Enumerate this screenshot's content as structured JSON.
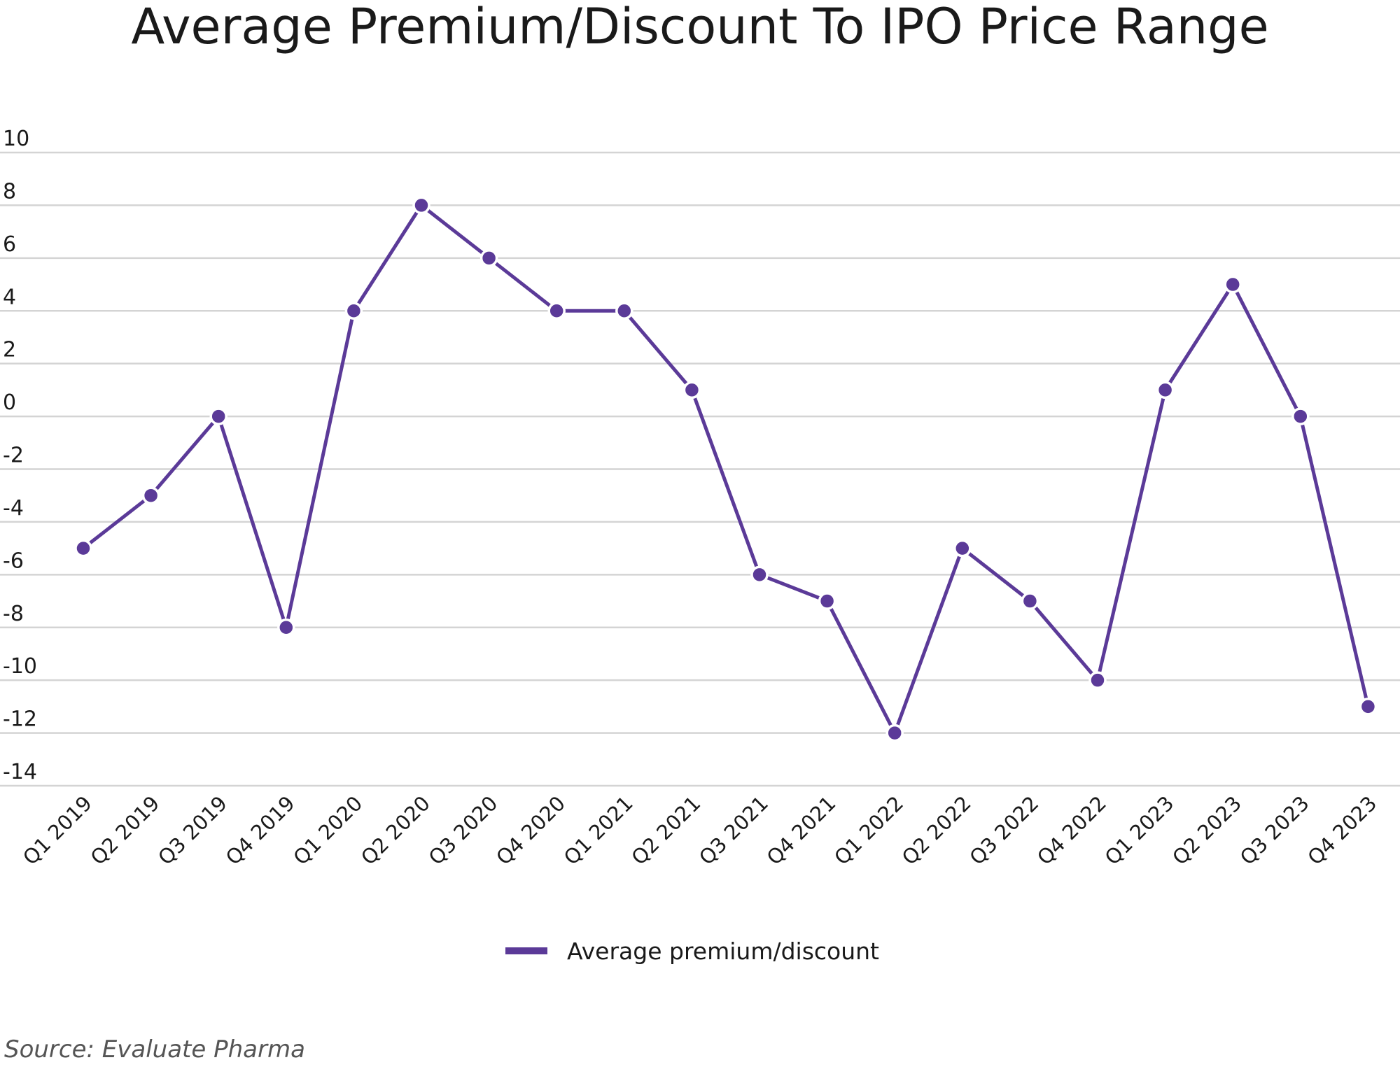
{
  "chart_data": {
    "type": "line",
    "title": "Average Premium/Discount To IPO Price Range",
    "xlabel": "",
    "ylabel": "",
    "categories": [
      "Q1 2019",
      "Q2 2019",
      "Q3 2019",
      "Q4 2019",
      "Q1 2020",
      "Q2 2020",
      "Q3 2020",
      "Q4 2020",
      "Q1 2021",
      "Q2 2021",
      "Q3 2021",
      "Q4 2021",
      "Q1 2022",
      "Q2 2022",
      "Q3 2022",
      "Q4 2022",
      "Q1 2023",
      "Q2 2023",
      "Q3 2023",
      "Q4 2023"
    ],
    "series": [
      {
        "name": "Average premium/discount",
        "values": [
          -5,
          -3,
          0,
          -8,
          4,
          8,
          6,
          4,
          4,
          1,
          -6,
          -7,
          -12,
          -5,
          -7,
          -10,
          1,
          5,
          0,
          -11
        ]
      }
    ],
    "ylim": [
      -14,
      10
    ],
    "yticks": [
      10,
      8,
      6,
      4,
      2,
      0,
      -2,
      -4,
      -6,
      -8,
      -10,
      -12,
      -14
    ],
    "grid": true,
    "legend_position": "bottom-center",
    "line_color": "#5b3a98",
    "grid_color": "#d4d4d4"
  },
  "source_note": "Source: Evaluate Pharma"
}
